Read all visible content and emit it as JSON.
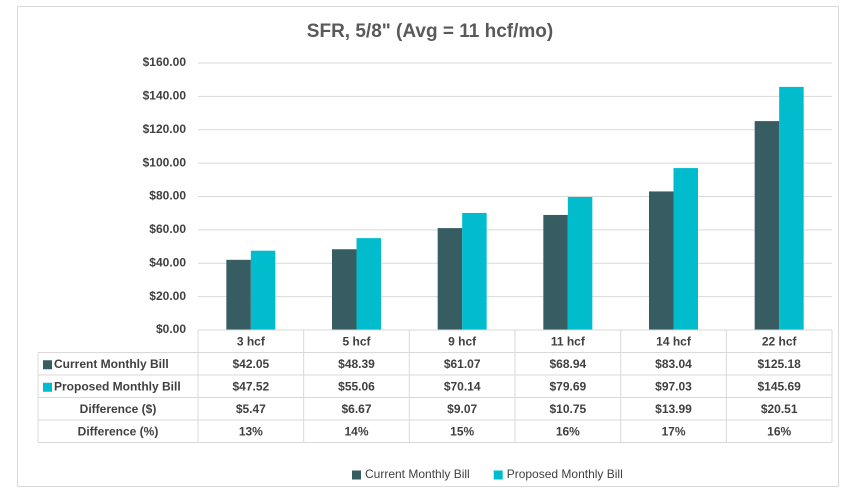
{
  "chart_data": {
    "type": "bar",
    "title": "SFR, 5/8\" (Avg = 11 hcf/mo)",
    "categories": [
      "3 hcf",
      "5 hcf",
      "9 hcf",
      "11 hcf",
      "14 hcf",
      "22 hcf"
    ],
    "series": [
      {
        "name": "Current Monthly Bill",
        "color": "#375c62",
        "values": [
          42.05,
          48.39,
          61.07,
          68.94,
          83.04,
          125.18
        ],
        "value_labels": [
          "$42.05",
          "$48.39",
          "$61.07",
          "$68.94",
          "$83.04",
          "$125.18"
        ]
      },
      {
        "name": "Proposed Monthly Bill",
        "color": "#00bccc",
        "values": [
          47.52,
          55.06,
          70.14,
          79.69,
          97.03,
          145.69
        ],
        "value_labels": [
          "$47.52",
          "$55.06",
          "$70.14",
          "$79.69",
          "$97.03",
          "$145.69"
        ]
      }
    ],
    "table_rows": [
      {
        "name": "Difference ($)",
        "values": [
          5.47,
          6.67,
          9.07,
          10.75,
          13.99,
          20.51
        ],
        "value_labels": [
          "$5.47",
          "$6.67",
          "$9.07",
          "$10.75",
          "$13.99",
          "$20.51"
        ]
      },
      {
        "name": "Difference (%)",
        "values": [
          13,
          14,
          15,
          16,
          17,
          16
        ],
        "value_labels": [
          "13%",
          "14%",
          "15%",
          "16%",
          "17%",
          "16%"
        ]
      }
    ],
    "ylim": [
      0,
      160
    ],
    "yticks": [
      {
        "value": 0,
        "label": "$0.00"
      },
      {
        "value": 20,
        "label": "$20.00"
      },
      {
        "value": 40,
        "label": "$40.00"
      },
      {
        "value": 60,
        "label": "$60.00"
      },
      {
        "value": 80,
        "label": "$80.00"
      },
      {
        "value": 100,
        "label": "$100.00"
      },
      {
        "value": 120,
        "label": "$120.00"
      },
      {
        "value": 140,
        "label": "$140.00"
      },
      {
        "value": 160,
        "label": "$160.00"
      }
    ],
    "grid": true,
    "legend": "bottom"
  }
}
